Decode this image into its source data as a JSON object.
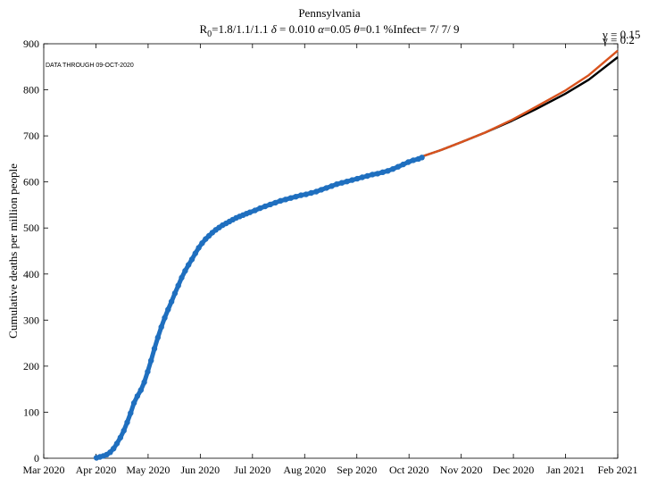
{
  "chart_data": {
    "type": "line",
    "title": "Pennsylvania",
    "subtitle": {
      "r0_label": "R",
      "r0_sub": "0",
      "r0_value": "=1.8/1.1/1.1",
      "delta_sym": "δ",
      "delta_val": " = 0.010",
      "alpha_sym": "α",
      "alpha_val": "=0.05",
      "theta_sym": "θ",
      "theta_val": "=0.1",
      "infect": "%Infect= 7/ 7/ 9"
    },
    "annotation": "DATA THROUGH 09-OCT-2020",
    "ylabel": "Cumulative deaths per million people",
    "xlabel": "",
    "ylim": [
      0,
      900
    ],
    "x_ticks": [
      "Mar 2020",
      "Apr 2020",
      "May 2020",
      "Jun 2020",
      "Jul 2020",
      "Aug 2020",
      "Sep 2020",
      "Oct 2020",
      "Nov 2020",
      "Dec 2020",
      "Jan 2021",
      "Feb 2021"
    ],
    "y_ticks": [
      0,
      100,
      200,
      300,
      400,
      500,
      600,
      700,
      800,
      900
    ],
    "series": [
      {
        "role": "observed",
        "color": "#1f6fbf",
        "marker": "circle",
        "points": [
          [
            "2020-04-01",
            1
          ],
          [
            "2020-04-03",
            3
          ],
          [
            "2020-04-05",
            5
          ],
          [
            "2020-04-07",
            8
          ],
          [
            "2020-04-09",
            13
          ],
          [
            "2020-04-11",
            21
          ],
          [
            "2020-04-13",
            32
          ],
          [
            "2020-04-15",
            45
          ],
          [
            "2020-04-17",
            60
          ],
          [
            "2020-04-19",
            78
          ],
          [
            "2020-04-21",
            98
          ],
          [
            "2020-04-23",
            120
          ],
          [
            "2020-04-25",
            135
          ],
          [
            "2020-04-27",
            148
          ],
          [
            "2020-04-29",
            165
          ],
          [
            "2020-05-01",
            188
          ],
          [
            "2020-05-03",
            212
          ],
          [
            "2020-05-05",
            238
          ],
          [
            "2020-05-07",
            262
          ],
          [
            "2020-05-09",
            285
          ],
          [
            "2020-05-11",
            305
          ],
          [
            "2020-05-13",
            323
          ],
          [
            "2020-05-15",
            340
          ],
          [
            "2020-05-17",
            358
          ],
          [
            "2020-05-19",
            375
          ],
          [
            "2020-05-21",
            392
          ],
          [
            "2020-05-23",
            407
          ],
          [
            "2020-05-25",
            420
          ],
          [
            "2020-05-27",
            432
          ],
          [
            "2020-05-29",
            445
          ],
          [
            "2020-05-31",
            457
          ],
          [
            "2020-06-02",
            467
          ],
          [
            "2020-06-04",
            476
          ],
          [
            "2020-06-06",
            483
          ],
          [
            "2020-06-08",
            490
          ],
          [
            "2020-06-10",
            496
          ],
          [
            "2020-06-12",
            501
          ],
          [
            "2020-06-14",
            506
          ],
          [
            "2020-06-16",
            510
          ],
          [
            "2020-06-18",
            514
          ],
          [
            "2020-06-20",
            518
          ],
          [
            "2020-06-22",
            522
          ],
          [
            "2020-06-24",
            525
          ],
          [
            "2020-06-26",
            528
          ],
          [
            "2020-06-28",
            531
          ],
          [
            "2020-06-30",
            534
          ],
          [
            "2020-07-03",
            538
          ],
          [
            "2020-07-06",
            543
          ],
          [
            "2020-07-09",
            547
          ],
          [
            "2020-07-12",
            551
          ],
          [
            "2020-07-15",
            555
          ],
          [
            "2020-07-18",
            559
          ],
          [
            "2020-07-21",
            562
          ],
          [
            "2020-07-24",
            565
          ],
          [
            "2020-07-27",
            568
          ],
          [
            "2020-07-30",
            571
          ],
          [
            "2020-08-02",
            573
          ],
          [
            "2020-08-05",
            576
          ],
          [
            "2020-08-08",
            579
          ],
          [
            "2020-08-11",
            583
          ],
          [
            "2020-08-14",
            587
          ],
          [
            "2020-08-17",
            591
          ],
          [
            "2020-08-20",
            595
          ],
          [
            "2020-08-23",
            598
          ],
          [
            "2020-08-26",
            601
          ],
          [
            "2020-08-29",
            604
          ],
          [
            "2020-09-01",
            607
          ],
          [
            "2020-09-04",
            610
          ],
          [
            "2020-09-07",
            613
          ],
          [
            "2020-09-10",
            616
          ],
          [
            "2020-09-13",
            618
          ],
          [
            "2020-09-16",
            621
          ],
          [
            "2020-09-19",
            624
          ],
          [
            "2020-09-22",
            628
          ],
          [
            "2020-09-25",
            633
          ],
          [
            "2020-09-28",
            638
          ],
          [
            "2020-10-01",
            643
          ],
          [
            "2020-10-04",
            647
          ],
          [
            "2020-10-07",
            650
          ],
          [
            "2020-10-09",
            653
          ]
        ]
      },
      {
        "role": "projection",
        "name": "γ = 0.15",
        "color": "#d9531e",
        "points": [
          [
            "2020-10-09",
            655
          ],
          [
            "2020-10-20",
            669
          ],
          [
            "2020-11-01",
            686
          ],
          [
            "2020-11-15",
            707
          ],
          [
            "2020-12-01",
            735
          ],
          [
            "2020-12-15",
            763
          ],
          [
            "2021-01-01",
            798
          ],
          [
            "2021-01-15",
            832
          ],
          [
            "2021-02-01",
            885
          ]
        ]
      },
      {
        "role": "projection",
        "name": "γ = 0.2",
        "color": "#000000",
        "points": [
          [
            "2020-10-09",
            655
          ],
          [
            "2020-10-20",
            669
          ],
          [
            "2020-11-01",
            686
          ],
          [
            "2020-11-15",
            707
          ],
          [
            "2020-12-01",
            733
          ],
          [
            "2020-12-15",
            758
          ],
          [
            "2021-01-01",
            791
          ],
          [
            "2021-01-15",
            822
          ],
          [
            "2021-02-01",
            871
          ]
        ]
      }
    ]
  }
}
